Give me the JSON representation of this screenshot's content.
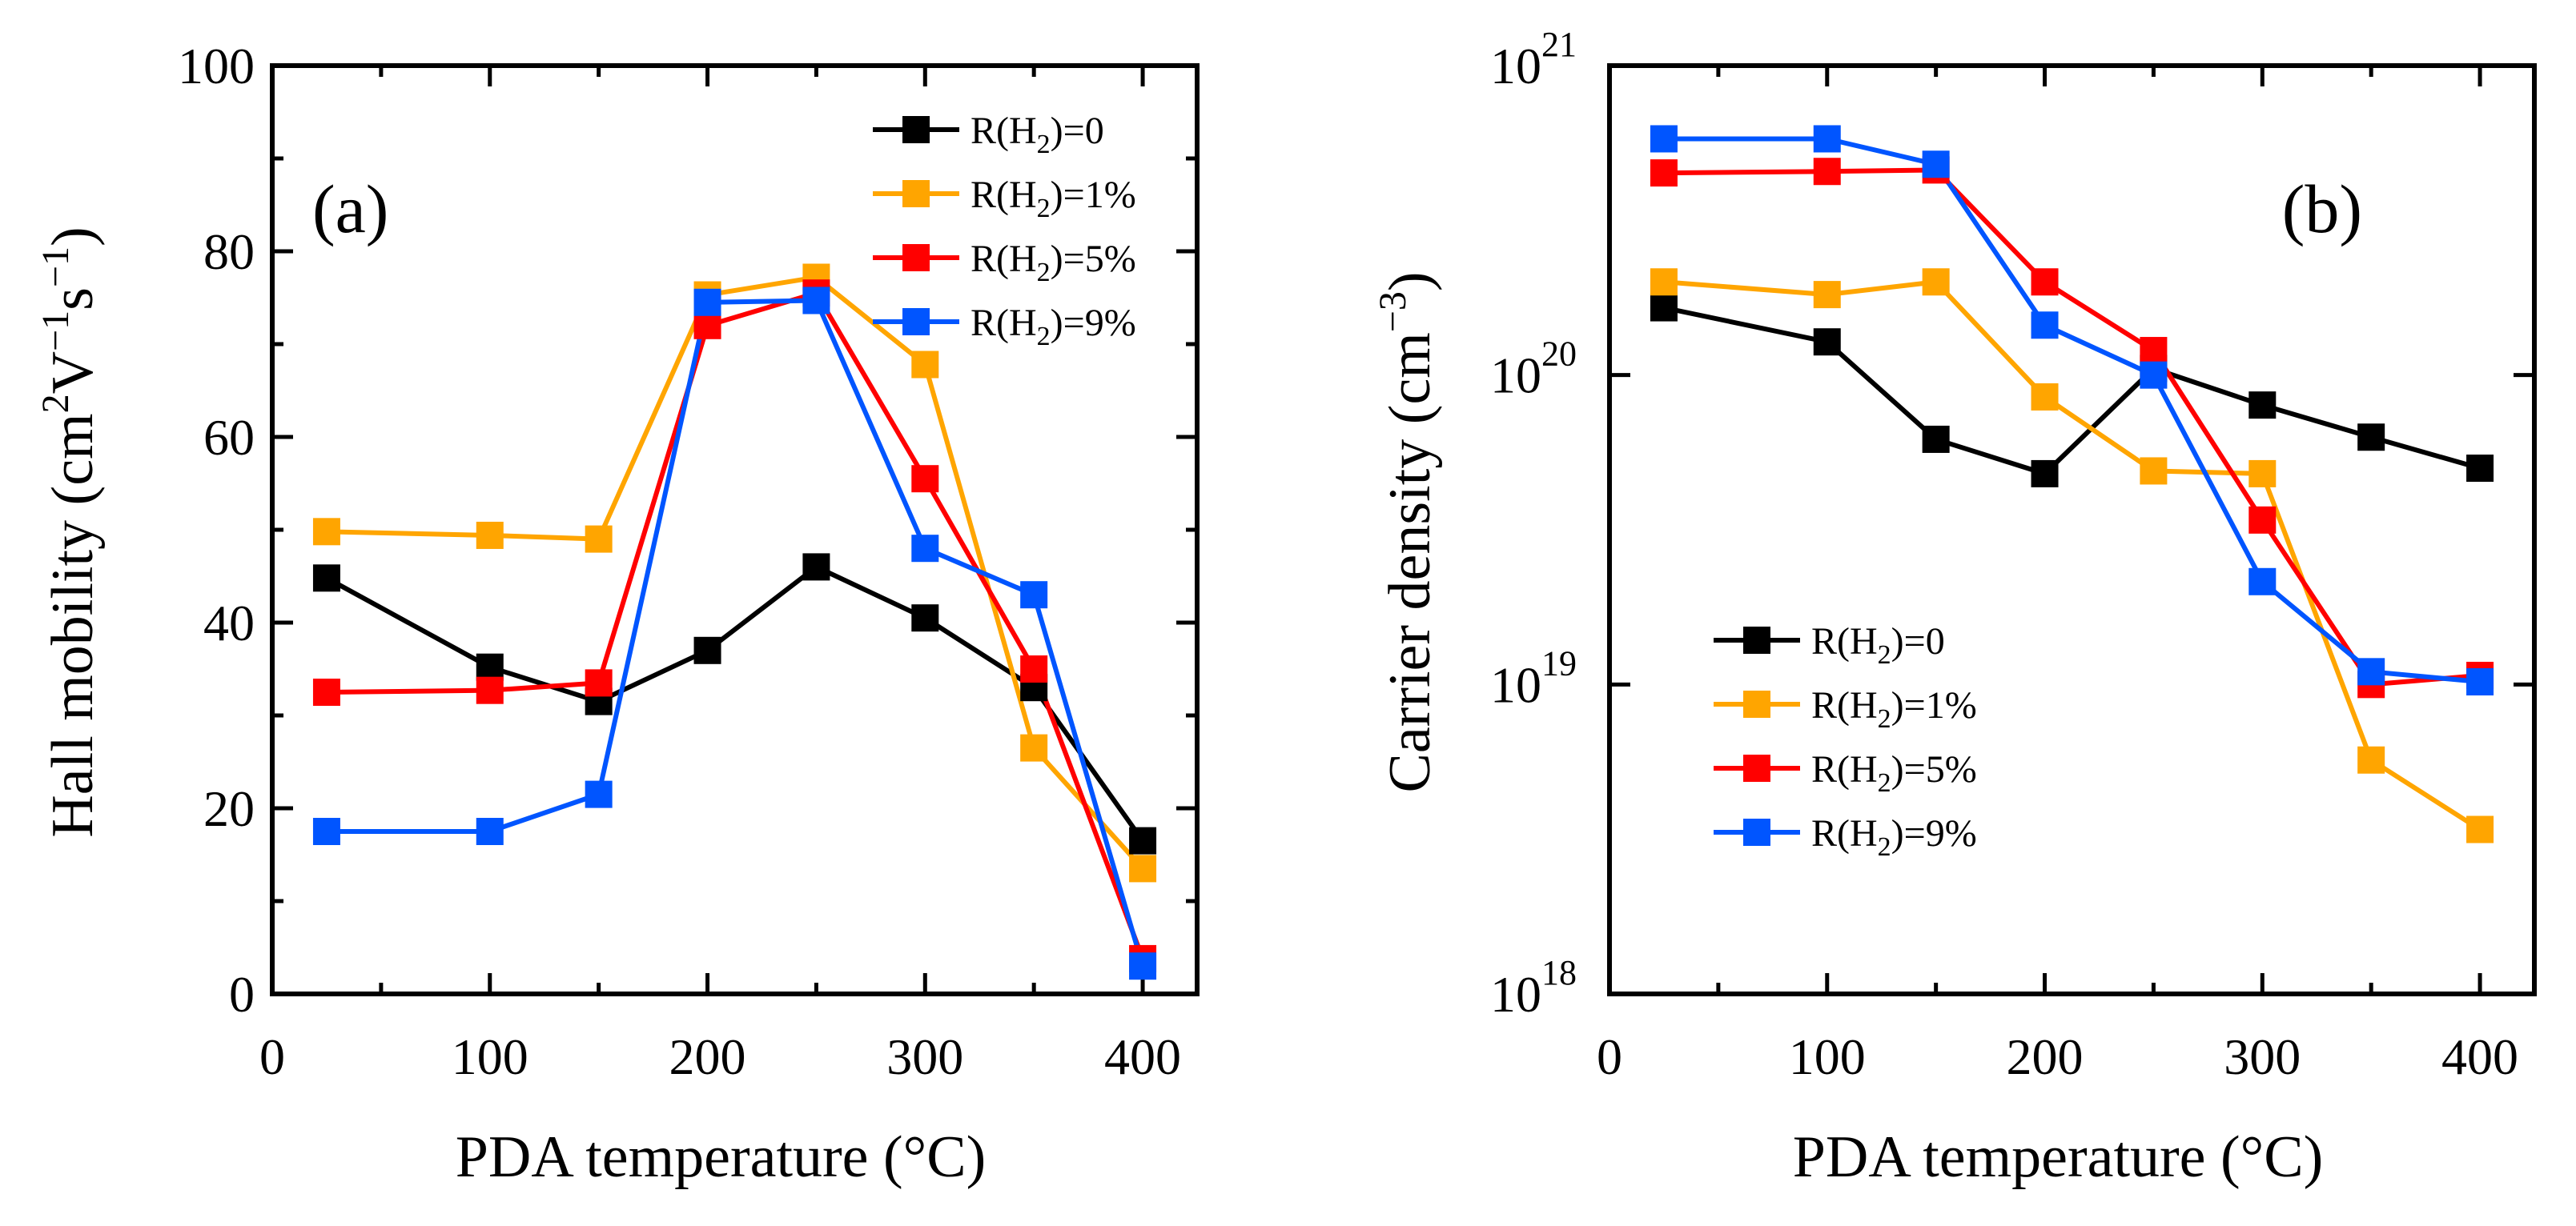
{
  "chart_data": [
    {
      "type": "line",
      "panel_label": "(a)",
      "xlabel": "PDA temperature (°C)",
      "ylabel": "Hall mobility (cm²V⁻¹s⁻¹)",
      "ylabel_parts": [
        "Hall mobility (cm",
        "2",
        "V",
        "−1",
        "s",
        "−1",
        ")"
      ],
      "xlim": [
        0,
        425
      ],
      "ylim": [
        0,
        100
      ],
      "xticks": [
        0,
        100,
        200,
        300,
        400
      ],
      "yticks": [
        0,
        20,
        40,
        60,
        80,
        100
      ],
      "legend_position": "top-right",
      "x": [
        25,
        100,
        150,
        200,
        250,
        300,
        350,
        400
      ],
      "series": [
        {
          "name": "R(H2)=0",
          "label_prefix": "R(H",
          "label_sub": "2",
          "label_suffix": ")=0",
          "color": "#000000",
          "values": [
            44.8,
            35.2,
            31.5,
            37.0,
            46.0,
            40.5,
            33.0,
            16.5
          ]
        },
        {
          "name": "R(H2)=1%",
          "label_prefix": "R(H",
          "label_sub": "2",
          "label_suffix": ")=1%",
          "color": "#FFA500",
          "values": [
            49.8,
            49.4,
            49.0,
            75.3,
            77.2,
            67.8,
            26.5,
            13.5
          ]
        },
        {
          "name": "R(H2)=5%",
          "label_prefix": "R(H",
          "label_sub": "2",
          "label_suffix": ")=5%",
          "color": "#FF0000",
          "values": [
            32.5,
            32.7,
            33.5,
            72.0,
            75.5,
            55.5,
            35.0,
            3.8
          ]
        },
        {
          "name": "R(H2)=9%",
          "label_prefix": "R(H",
          "label_sub": "2",
          "label_suffix": ")=9%",
          "color": "#0055FF",
          "values": [
            17.5,
            17.5,
            21.5,
            74.5,
            74.7,
            48.0,
            43.0,
            3.0
          ]
        }
      ]
    },
    {
      "type": "line",
      "yscale": "log",
      "panel_label": "(b)",
      "xlabel": "PDA temperature (°C)",
      "ylabel": "Carrier density (cm⁻³)",
      "ylabel_parts": [
        "Carrier density (cm",
        "−3",
        ")"
      ],
      "xlim": [
        0,
        425
      ],
      "ylim": [
        1e+18,
        1e+21
      ],
      "xticks": [
        0,
        100,
        200,
        300,
        400
      ],
      "yticks": [
        {
          "value": 1e+18,
          "base": "10",
          "exp": "18"
        },
        {
          "value": 1e+19,
          "base": "10",
          "exp": "19"
        },
        {
          "value": 1e+20,
          "base": "10",
          "exp": "20"
        },
        {
          "value": 1e+21,
          "base": "10",
          "exp": "21"
        }
      ],
      "legend_position": "bottom-left",
      "x": [
        25,
        100,
        150,
        200,
        250,
        300,
        350,
        400
      ],
      "series": [
        {
          "name": "R(H2)=0",
          "label_prefix": "R(H",
          "label_sub": "2",
          "label_suffix": ")=0",
          "color": "#000000",
          "values": [
            1.65e+20,
            1.28e+20,
            6.2e+19,
            4.8e+19,
            1.05e+20,
            8e+19,
            6.3e+19,
            5e+19
          ]
        },
        {
          "name": "R(H2)=1%",
          "label_prefix": "R(H",
          "label_sub": "2",
          "label_suffix": ")=1%",
          "color": "#FFA500",
          "values": [
            2e+20,
            1.82e+20,
            2e+20,
            8.5e+19,
            4.9e+19,
            4.8e+19,
            5.7e+18,
            3.4e+18
          ]
        },
        {
          "name": "R(H2)=5%",
          "label_prefix": "R(H",
          "label_sub": "2",
          "label_suffix": ")=5%",
          "color": "#FF0000",
          "values": [
            4.5e+20,
            4.55e+20,
            4.6e+20,
            2e+20,
            1.2e+20,
            3.4e+19,
            1e+19,
            1.07e+19
          ]
        },
        {
          "name": "R(H2)=9%",
          "label_prefix": "R(H",
          "label_sub": "2",
          "label_suffix": ")=9%",
          "color": "#0055FF",
          "values": [
            5.8e+20,
            5.8e+20,
            4.8e+20,
            1.45e+20,
            1e+20,
            2.15e+19,
            1.1e+19,
            1.02e+19
          ]
        }
      ]
    }
  ]
}
